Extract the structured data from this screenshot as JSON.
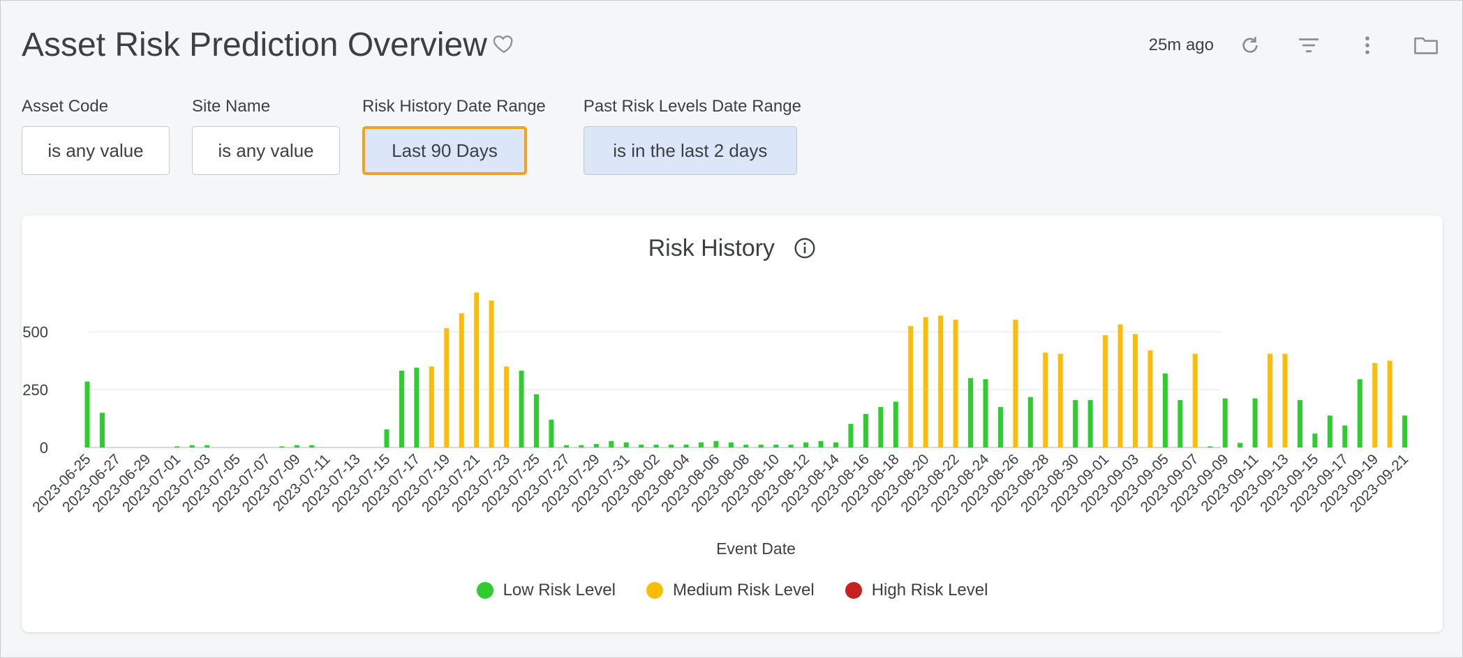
{
  "header": {
    "title": "Asset Risk Prediction Overview",
    "last_updated": "25m ago"
  },
  "icons": {
    "favorite": "heart-outline-icon",
    "refresh": "refresh-icon",
    "filter": "filter-lines-icon",
    "more": "more-vertical-icon",
    "folder": "folder-icon",
    "info": "info-circle-icon"
  },
  "filters": [
    {
      "label": "Asset Code",
      "value": "is any value"
    },
    {
      "label": "Site Name",
      "value": "is any value"
    },
    {
      "label": "Risk History Date Range",
      "value": "Last 90 Days"
    },
    {
      "label": "Past Risk Levels Date Range",
      "value": "is in the last 2 days"
    }
  ],
  "colors": {
    "low": "#2ecc2e",
    "medium": "#fbbd0a",
    "high": "#c62020",
    "focus": "#f7a11a",
    "active_filter_bg": "#dbe7f9"
  },
  "chart_data": {
    "type": "bar",
    "title": "Risk History",
    "xlabel": "Event Date",
    "ylabel": "",
    "ylim": [
      0,
      680
    ],
    "yticks": [
      0,
      250,
      500
    ],
    "grid": true,
    "legend_position": "bottom",
    "x_tick_labels": [
      "2023-06-25",
      "2023-06-27",
      "2023-06-29",
      "2023-07-01",
      "2023-07-03",
      "2023-07-05",
      "2023-07-07",
      "2023-07-09",
      "2023-07-11",
      "2023-07-13",
      "2023-07-15",
      "2023-07-17",
      "2023-07-19",
      "2023-07-21",
      "2023-07-23",
      "2023-07-25",
      "2023-07-27",
      "2023-07-29",
      "2023-07-31",
      "2023-08-02",
      "2023-08-04",
      "2023-08-06",
      "2023-08-08",
      "2023-08-10",
      "2023-08-12",
      "2023-08-14",
      "2023-08-16",
      "2023-08-18",
      "2023-08-20",
      "2023-08-22",
      "2023-08-24",
      "2023-08-26",
      "2023-08-28",
      "2023-08-30",
      "2023-09-01",
      "2023-09-03",
      "2023-09-05",
      "2023-09-07",
      "2023-09-09",
      "2023-09-11",
      "2023-09-13",
      "2023-09-15",
      "2023-09-17",
      "2023-09-19",
      "2023-09-21"
    ],
    "series": [
      {
        "name": "Low Risk Level",
        "color_key": "low"
      },
      {
        "name": "Medium Risk Level",
        "color_key": "medium"
      },
      {
        "name": "High Risk Level",
        "color_key": "high"
      }
    ],
    "bars": [
      {
        "date": "2023-06-25",
        "level": "low",
        "value": 285
      },
      {
        "date": "2023-06-26",
        "level": "low",
        "value": 150
      },
      {
        "date": "2023-07-01",
        "level": "low",
        "value": 5
      },
      {
        "date": "2023-07-02",
        "level": "low",
        "value": 10
      },
      {
        "date": "2023-07-03",
        "level": "low",
        "value": 10
      },
      {
        "date": "2023-07-08",
        "level": "low",
        "value": 5
      },
      {
        "date": "2023-07-09",
        "level": "low",
        "value": 10
      },
      {
        "date": "2023-07-10",
        "level": "low",
        "value": 10
      },
      {
        "date": "2023-07-15",
        "level": "low",
        "value": 78
      },
      {
        "date": "2023-07-16",
        "level": "low",
        "value": 332
      },
      {
        "date": "2023-07-17",
        "level": "low",
        "value": 345
      },
      {
        "date": "2023-07-18",
        "level": "medium",
        "value": 350
      },
      {
        "date": "2023-07-19",
        "level": "medium",
        "value": 515
      },
      {
        "date": "2023-07-20",
        "level": "medium",
        "value": 580
      },
      {
        "date": "2023-07-21",
        "level": "medium",
        "value": 670
      },
      {
        "date": "2023-07-22",
        "level": "medium",
        "value": 635
      },
      {
        "date": "2023-07-23",
        "level": "medium",
        "value": 350
      },
      {
        "date": "2023-07-24",
        "level": "low",
        "value": 332
      },
      {
        "date": "2023-07-25",
        "level": "low",
        "value": 230
      },
      {
        "date": "2023-07-26",
        "level": "low",
        "value": 120
      },
      {
        "date": "2023-07-27",
        "level": "low",
        "value": 10
      },
      {
        "date": "2023-07-28",
        "level": "low",
        "value": 10
      },
      {
        "date": "2023-07-29",
        "level": "low",
        "value": 15
      },
      {
        "date": "2023-07-30",
        "level": "low",
        "value": 28
      },
      {
        "date": "2023-07-31",
        "level": "low",
        "value": 22
      },
      {
        "date": "2023-08-01",
        "level": "low",
        "value": 12
      },
      {
        "date": "2023-08-02",
        "level": "low",
        "value": 12
      },
      {
        "date": "2023-08-03",
        "level": "low",
        "value": 12
      },
      {
        "date": "2023-08-04",
        "level": "low",
        "value": 12
      },
      {
        "date": "2023-08-05",
        "level": "low",
        "value": 22
      },
      {
        "date": "2023-08-06",
        "level": "low",
        "value": 28
      },
      {
        "date": "2023-08-07",
        "level": "low",
        "value": 22
      },
      {
        "date": "2023-08-08",
        "level": "low",
        "value": 12
      },
      {
        "date": "2023-08-09",
        "level": "low",
        "value": 12
      },
      {
        "date": "2023-08-10",
        "level": "low",
        "value": 12
      },
      {
        "date": "2023-08-11",
        "level": "low",
        "value": 12
      },
      {
        "date": "2023-08-12",
        "level": "low",
        "value": 22
      },
      {
        "date": "2023-08-13",
        "level": "low",
        "value": 28
      },
      {
        "date": "2023-08-14",
        "level": "low",
        "value": 22
      },
      {
        "date": "2023-08-15",
        "level": "low",
        "value": 102
      },
      {
        "date": "2023-08-16",
        "level": "low",
        "value": 145
      },
      {
        "date": "2023-08-17",
        "level": "low",
        "value": 175
      },
      {
        "date": "2023-08-18",
        "level": "low",
        "value": 198
      },
      {
        "date": "2023-08-19",
        "level": "medium",
        "value": 525
      },
      {
        "date": "2023-08-20",
        "level": "medium",
        "value": 563
      },
      {
        "date": "2023-08-21",
        "level": "medium",
        "value": 570
      },
      {
        "date": "2023-08-22",
        "level": "medium",
        "value": 552
      },
      {
        "date": "2023-08-23",
        "level": "low",
        "value": 300
      },
      {
        "date": "2023-08-24",
        "level": "low",
        "value": 295
      },
      {
        "date": "2023-08-25",
        "level": "low",
        "value": 175
      },
      {
        "date": "2023-08-26",
        "level": "medium",
        "value": 552
      },
      {
        "date": "2023-08-27",
        "level": "low",
        "value": 218
      },
      {
        "date": "2023-08-28",
        "level": "medium",
        "value": 410
      },
      {
        "date": "2023-08-29",
        "level": "medium",
        "value": 405
      },
      {
        "date": "2023-08-30",
        "level": "low",
        "value": 205
      },
      {
        "date": "2023-08-31",
        "level": "low",
        "value": 205
      },
      {
        "date": "2023-09-01",
        "level": "medium",
        "value": 485
      },
      {
        "date": "2023-09-02",
        "level": "medium",
        "value": 532
      },
      {
        "date": "2023-09-03",
        "level": "medium",
        "value": 490
      },
      {
        "date": "2023-09-04",
        "level": "medium",
        "value": 420
      },
      {
        "date": "2023-09-05",
        "level": "low",
        "value": 320
      },
      {
        "date": "2023-09-06",
        "level": "low",
        "value": 205
      },
      {
        "date": "2023-09-07",
        "level": "medium",
        "value": 405
      },
      {
        "date": "2023-09-08",
        "level": "low",
        "value": 5
      },
      {
        "date": "2023-09-09",
        "level": "low",
        "value": 212
      },
      {
        "date": "2023-09-10",
        "level": "low",
        "value": 20
      },
      {
        "date": "2023-09-11",
        "level": "low",
        "value": 212
      },
      {
        "date": "2023-09-12",
        "level": "medium",
        "value": 405
      },
      {
        "date": "2023-09-13",
        "level": "medium",
        "value": 405
      },
      {
        "date": "2023-09-14",
        "level": "low",
        "value": 205
      },
      {
        "date": "2023-09-15",
        "level": "low",
        "value": 60
      },
      {
        "date": "2023-09-16",
        "level": "low",
        "value": 138
      },
      {
        "date": "2023-09-17",
        "level": "low",
        "value": 95
      },
      {
        "date": "2023-09-18",
        "level": "low",
        "value": 295
      },
      {
        "date": "2023-09-19",
        "level": "medium",
        "value": 365
      },
      {
        "date": "2023-09-20",
        "level": "medium",
        "value": 375
      },
      {
        "date": "2023-09-21",
        "level": "low",
        "value": 138
      }
    ]
  }
}
